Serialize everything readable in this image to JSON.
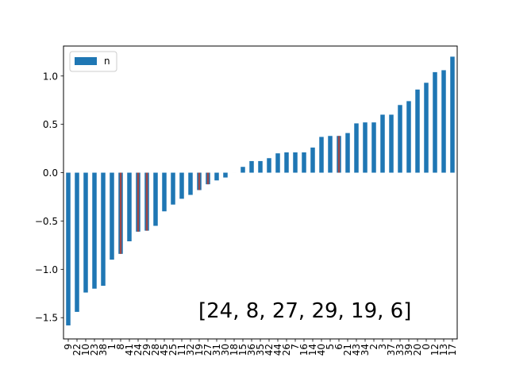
{
  "chart_data": {
    "type": "bar",
    "title": "",
    "xlabel": "",
    "ylabel": "",
    "ylim": [
      -1.72,
      1.31
    ],
    "yticks": [
      -1.5,
      -1.0,
      -0.5,
      0.0,
      0.5,
      1.0
    ],
    "ytick_labels": [
      "−1.5",
      "−1.0",
      "−0.5",
      "0.0",
      "0.5",
      "1.0"
    ],
    "grid": false,
    "legend": {
      "position": "top-left",
      "entries": [
        "n"
      ]
    },
    "categories": [
      "9",
      "22",
      "10",
      "23",
      "38",
      "1",
      "8",
      "41",
      "24",
      "29",
      "28",
      "45",
      "25",
      "11",
      "32",
      "19",
      "27",
      "31",
      "30",
      "18",
      "15",
      "36",
      "35",
      "42",
      "44",
      "26",
      "7",
      "16",
      "14",
      "40",
      "5",
      "6",
      "21",
      "43",
      "34",
      "2",
      "3",
      "37",
      "33",
      "39",
      "20",
      "0",
      "12",
      "13",
      "17"
    ],
    "series": [
      {
        "name": "n",
        "values": [
          -1.58,
          -1.44,
          -1.24,
          -1.2,
          -1.17,
          -0.9,
          -0.84,
          -0.71,
          -0.61,
          -0.6,
          -0.55,
          -0.4,
          -0.33,
          -0.27,
          -0.23,
          -0.18,
          -0.12,
          -0.08,
          -0.05,
          0.0,
          0.06,
          0.12,
          0.12,
          0.15,
          0.2,
          0.21,
          0.21,
          0.21,
          0.26,
          0.37,
          0.38,
          0.38,
          0.41,
          0.51,
          0.52,
          0.52,
          0.6,
          0.6,
          0.7,
          0.74,
          0.86,
          0.93,
          1.04,
          1.06,
          1.2
        ],
        "color": "#1f77b4"
      }
    ],
    "highlighted_categories": [
      "24",
      "8",
      "27",
      "29",
      "19",
      "6"
    ],
    "highlight_color": "#c0392b",
    "annotation": "[24, 8, 27, 29, 19, 6]"
  }
}
